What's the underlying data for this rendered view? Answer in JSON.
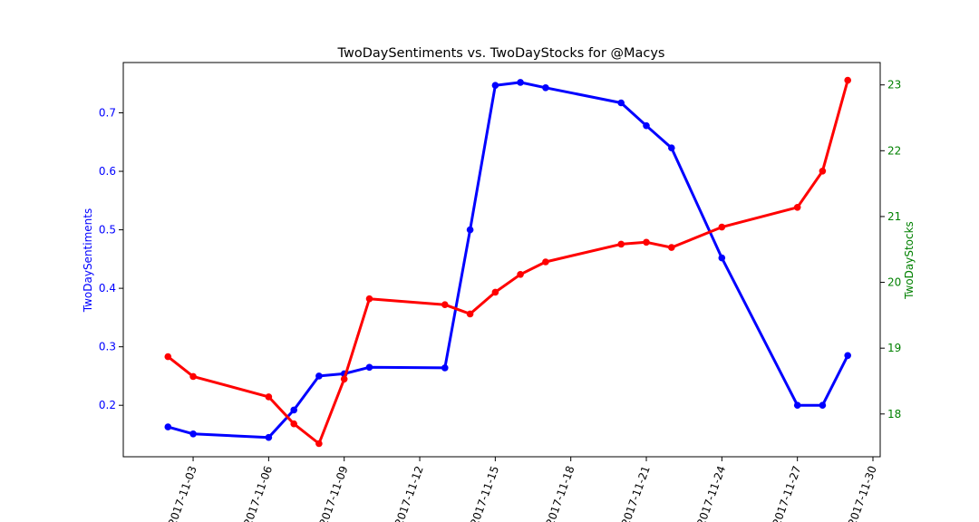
{
  "chart_data": {
    "type": "line",
    "title": "TwoDaySentiments vs. TwoDayStocks for @Macys",
    "x_axis": {
      "type": "date",
      "ticks": [
        "2017-11-03",
        "2017-11-06",
        "2017-11-09",
        "2017-11-12",
        "2017-11-15",
        "2017-11-18",
        "2017-11-21",
        "2017-11-24",
        "2017-11-27",
        "2017-11-30"
      ],
      "range": [
        "2017-11-01",
        "2017-11-30"
      ],
      "tick_rotation_degrees": 70
    },
    "y_left": {
      "label": "TwoDaySentiments",
      "color": "#0000ff",
      "ticks": [
        0.2,
        0.3,
        0.4,
        0.5,
        0.6,
        0.7
      ],
      "range": [
        0.112,
        0.786
      ]
    },
    "y_right": {
      "label": "TwoDayStocks",
      "color": "#008000",
      "ticks": [
        18,
        19,
        20,
        21,
        22,
        23
      ],
      "range": [
        17.35,
        23.34
      ]
    },
    "grid": false,
    "legend": "none",
    "series": [
      {
        "axis": "left",
        "color": "#0000ff",
        "points": [
          {
            "x": "2017-11-02",
            "y": 0.163
          },
          {
            "x": "2017-11-03",
            "y": 0.151
          },
          {
            "x": "2017-11-06",
            "y": 0.145
          },
          {
            "x": "2017-11-07",
            "y": 0.192
          },
          {
            "x": "2017-11-08",
            "y": 0.25
          },
          {
            "x": "2017-11-09",
            "y": 0.254
          },
          {
            "x": "2017-11-10",
            "y": 0.265
          },
          {
            "x": "2017-11-13",
            "y": 0.264
          },
          {
            "x": "2017-11-14",
            "y": 0.5
          },
          {
            "x": "2017-11-15",
            "y": 0.747
          },
          {
            "x": "2017-11-16",
            "y": 0.752
          },
          {
            "x": "2017-11-17",
            "y": 0.743
          },
          {
            "x": "2017-11-20",
            "y": 0.717
          },
          {
            "x": "2017-11-21",
            "y": 0.678
          },
          {
            "x": "2017-11-22",
            "y": 0.64
          },
          {
            "x": "2017-11-24",
            "y": 0.452
          },
          {
            "x": "2017-11-27",
            "y": 0.2
          },
          {
            "x": "2017-11-28",
            "y": 0.2
          },
          {
            "x": "2017-11-29",
            "y": 0.285
          }
        ]
      },
      {
        "axis": "right",
        "color": "#ff0000",
        "points": [
          {
            "x": "2017-11-02",
            "y": 18.87
          },
          {
            "x": "2017-11-03",
            "y": 18.57
          },
          {
            "x": "2017-11-06",
            "y": 18.26
          },
          {
            "x": "2017-11-07",
            "y": 17.85
          },
          {
            "x": "2017-11-08",
            "y": 17.55
          },
          {
            "x": "2017-11-09",
            "y": 18.53
          },
          {
            "x": "2017-11-10",
            "y": 19.75
          },
          {
            "x": "2017-11-13",
            "y": 19.66
          },
          {
            "x": "2017-11-14",
            "y": 19.52
          },
          {
            "x": "2017-11-15",
            "y": 19.85
          },
          {
            "x": "2017-11-16",
            "y": 20.12
          },
          {
            "x": "2017-11-17",
            "y": 20.31
          },
          {
            "x": "2017-11-20",
            "y": 20.58
          },
          {
            "x": "2017-11-21",
            "y": 20.61
          },
          {
            "x": "2017-11-22",
            "y": 20.53
          },
          {
            "x": "2017-11-24",
            "y": 20.84
          },
          {
            "x": "2017-11-27",
            "y": 21.14
          },
          {
            "x": "2017-11-28",
            "y": 21.69
          },
          {
            "x": "2017-11-29",
            "y": 23.07
          }
        ]
      }
    ]
  }
}
